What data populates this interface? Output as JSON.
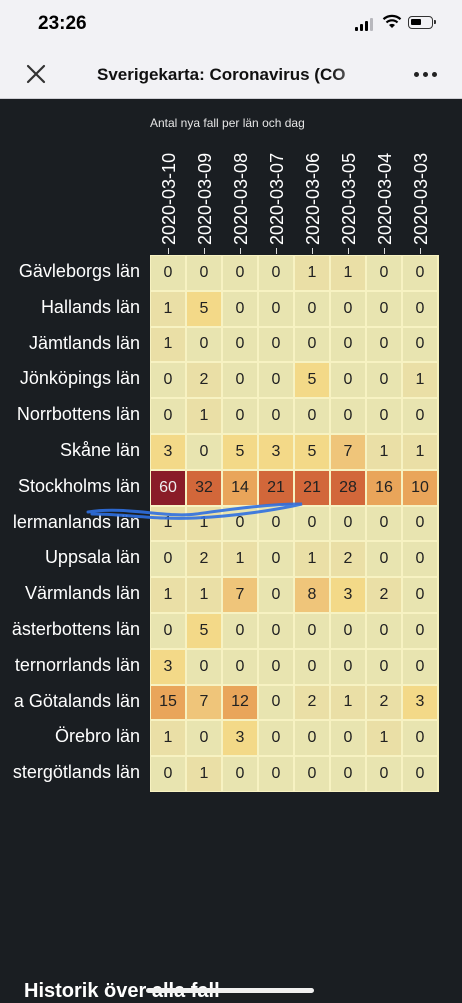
{
  "status_bar": {
    "time": "23:26"
  },
  "nav": {
    "title": "Sverigekarta: Coronavirus (CO"
  },
  "chart_data": {
    "type": "heatmap",
    "title": "Antal nya fall per län och dag",
    "columns": [
      "2020-03-10",
      "2020-03-09",
      "2020-03-08",
      "2020-03-07",
      "2020-03-06",
      "2020-03-05",
      "2020-03-04",
      "2020-03-03"
    ],
    "rows": [
      "Gävleborgs län",
      "Hallands län",
      "Jämtlands län",
      "Jönköpings län",
      "Norrbottens län",
      "Skåne län",
      "Stockholms län",
      "Södermanlands län",
      "Uppsala län",
      "Värmlands län",
      "Västerbottens län",
      "Västernorrlands län",
      "Västra Götalands län",
      "Örebro län",
      "Östergötlands län"
    ],
    "row_labels_visible": [
      "Gävleborgs län",
      "Hallands län",
      "Jämtlands län",
      "Jönköpings län",
      "Norrbottens län",
      "Skåne län",
      "Stockholms län",
      "lermanlands län",
      "Uppsala län",
      "Värmlands län",
      "ästerbottens län",
      "ternorrlands län",
      "a Götalands län",
      "Örebro län",
      "stergötlands län"
    ],
    "values": [
      [
        0,
        0,
        0,
        0,
        1,
        1,
        0,
        0
      ],
      [
        1,
        5,
        0,
        0,
        0,
        0,
        0,
        0
      ],
      [
        1,
        0,
        0,
        0,
        0,
        0,
        0,
        0
      ],
      [
        0,
        2,
        0,
        0,
        5,
        0,
        0,
        1
      ],
      [
        0,
        1,
        0,
        0,
        0,
        0,
        0,
        0
      ],
      [
        3,
        0,
        5,
        3,
        5,
        7,
        1,
        1
      ],
      [
        60,
        32,
        14,
        21,
        21,
        28,
        16,
        10
      ],
      [
        1,
        1,
        0,
        0,
        0,
        0,
        0,
        0
      ],
      [
        0,
        2,
        1,
        0,
        1,
        2,
        0,
        0
      ],
      [
        1,
        1,
        7,
        0,
        8,
        3,
        2,
        0
      ],
      [
        0,
        5,
        0,
        0,
        0,
        0,
        0,
        0
      ],
      [
        3,
        0,
        0,
        0,
        0,
        0,
        0,
        0
      ],
      [
        15,
        7,
        12,
        0,
        2,
        1,
        2,
        3
      ],
      [
        1,
        0,
        3,
        0,
        0,
        0,
        1,
        0
      ],
      [
        0,
        1,
        0,
        0,
        0,
        0,
        0,
        0
      ]
    ],
    "color_scale": [
      "#e8e4b0",
      "#f3d988",
      "#e9a55a",
      "#d2673a",
      "#8a1c28"
    ]
  },
  "footer": {
    "section_title": "Historik över alla fall"
  }
}
